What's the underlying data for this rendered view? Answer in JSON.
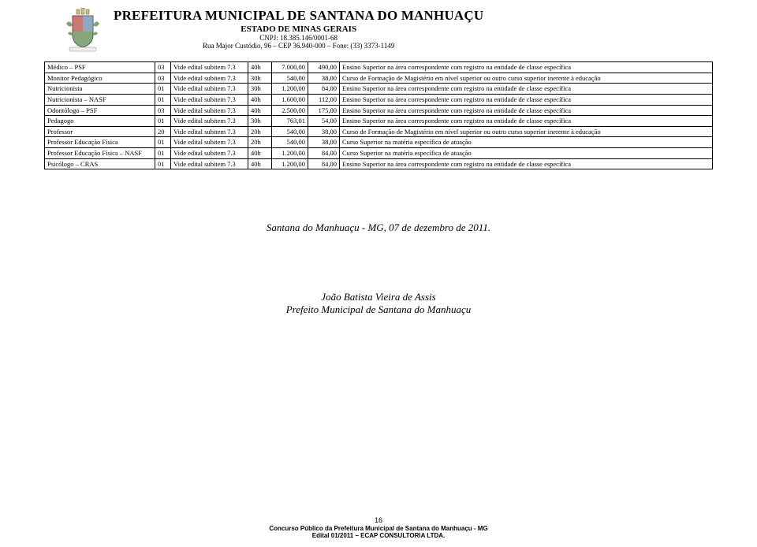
{
  "header": {
    "title": "PREFEITURA MUNICIPAL DE SANTANA DO MANHUAÇU",
    "subtitle": "ESTADO DE MINAS GERAIS",
    "cnpj": "CNPJ: 18.385.146/0001-68",
    "address": "Rua Major Custódio, 96 – CEP 36.940-000 – Fone: (33) 3373-1149",
    "crest": {
      "shield_fill": "#e8e8dc",
      "crown_fill": "#d4c070",
      "accent_red": "#b03030",
      "accent_green": "#4a7a3a",
      "accent_blue": "#5080b0",
      "outline": "#555555"
    }
  },
  "colors": {
    "text": "#000000",
    "border": "#000000",
    "background": "#ffffff"
  },
  "rows": [
    {
      "nome": "Médico – PSF",
      "qtd": "03",
      "vide": "Vide edital subitem 7.3",
      "carga": "40h",
      "sal": "7.000,00",
      "tax": "490,00",
      "req": "Ensino Superior na área correspondente com registro na entidade de classe específica"
    },
    {
      "nome": "Monitor Pedagógico",
      "qtd": "03",
      "vide": "Vide edital subitem 7.3",
      "carga": "30h",
      "sal": "540,00",
      "tax": "38,00",
      "req": "Curso de Formação de Magistério em nível superior ou outro curso superior inerente à educação"
    },
    {
      "nome": "Nutricionista",
      "qtd": "01",
      "vide": "Vide edital subitem 7.3",
      "carga": "30h",
      "sal": "1.200,00",
      "tax": "84,00",
      "req": "Ensino Superior na área correspondente com registro na entidade de classe específica"
    },
    {
      "nome": "Nutricionista – NASF",
      "qtd": "01",
      "vide": "Vide edital subitem 7.3",
      "carga": "40h",
      "sal": "1.600,00",
      "tax": "112,00",
      "req": "Ensino Superior na área correspondente com registro na entidade de classe específica"
    },
    {
      "nome": "Odontólogo – PSF",
      "qtd": "03",
      "vide": "Vide edital subitem 7.3",
      "carga": "40h",
      "sal": "2.500,00",
      "tax": "175,00",
      "req": "Ensino Superior na área correspondente com registro na entidade de classe específica"
    },
    {
      "nome": "Pedagogo",
      "qtd": "01",
      "vide": "Vide edital subitem 7.3",
      "carga": "30h",
      "sal": "763,01",
      "tax": "54,00",
      "req": "Ensino Superior na área correspondente com registro na entidade de classe específica"
    },
    {
      "nome": "Professor",
      "qtd": "20",
      "vide": "Vide edital subitem 7.3",
      "carga": "20h",
      "sal": "540,00",
      "tax": "38,00",
      "req": "Curso de Formação de Magistério em nível superior ou outro curso superior inerente à educação"
    },
    {
      "nome": "Professor Educação Física",
      "qtd": "01",
      "vide": "Vide edital subitem 7.3",
      "carga": "20h",
      "sal": "540,00",
      "tax": "38,00",
      "req": "Curso Superior na matéria específica de atuação"
    },
    {
      "nome": "Professor Educação Física – NASF",
      "qtd": "01",
      "vide": "Vide edital subitem 7.3",
      "carga": "40h",
      "sal": "1.200,00",
      "tax": "84,00",
      "req": "Curso Superior na matéria específica de atuação"
    },
    {
      "nome": "Psicólogo – CRAS",
      "qtd": "01",
      "vide": "Vide edital subitem 7.3",
      "carga": "40h",
      "sal": "1.200,00",
      "tax": "84,00",
      "req": "Ensino Superior na área correspondente com registro na entidade de classe específica"
    }
  ],
  "closing": "Santana do Manhuaçu - MG, 07 de dezembro de 2011.",
  "signature": {
    "name": "João Batista Vieira de Assis",
    "title": "Prefeito Municipal de Santana do Manhuaçu"
  },
  "footer": {
    "page": "16",
    "line1": "Concurso Público da Prefeitura Municipal de Santana do Manhuaçu - MG",
    "line2": "Edital 01/2011 – ECAP CONSULTORIA LTDA."
  }
}
